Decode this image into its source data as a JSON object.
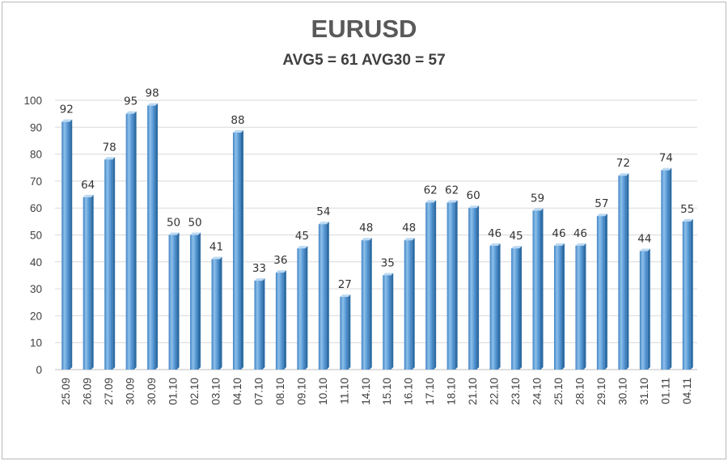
{
  "chart_data": {
    "type": "bar",
    "title": "EURUSD",
    "subtitle": "AVG5 = 61 AVG30 = 57",
    "categories": [
      "25.09",
      "26.09",
      "27.09",
      "30.09",
      "30.09",
      "01.10",
      "02.10",
      "03.10",
      "04.10",
      "07.10",
      "08.10",
      "09.10",
      "10.10",
      "11.10",
      "14.10",
      "15.10",
      "16.10",
      "17.10",
      "18.10",
      "21.10",
      "22.10",
      "23.10",
      "24.10",
      "25.10",
      "28.10",
      "29.10",
      "30.10",
      "31.10",
      "01.11",
      "04.11"
    ],
    "values": [
      92,
      64,
      78,
      95,
      98,
      50,
      50,
      41,
      88,
      33,
      36,
      45,
      54,
      27,
      48,
      35,
      48,
      62,
      62,
      60,
      46,
      45,
      59,
      46,
      46,
      57,
      72,
      44,
      74,
      55
    ],
    "ylim": [
      0,
      100
    ],
    "yticks": [
      0,
      10,
      20,
      30,
      40,
      50,
      60,
      70,
      80,
      90,
      100
    ],
    "grid": true,
    "legend": "none",
    "colors": {
      "bar_front": "#5b9bd5",
      "bar_light": "#8ec0ea",
      "bar_side": "#2e6da4",
      "bar_top": "#bcd9f2",
      "grid": "#d9d9d9",
      "axis": "#bfbfbf"
    }
  }
}
